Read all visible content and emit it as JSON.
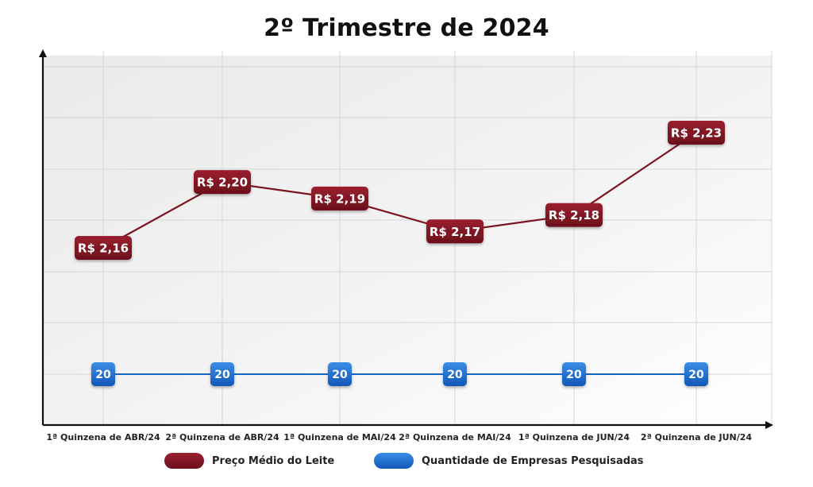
{
  "colors": {
    "price": "#7b1420",
    "price_light": "#9a2030",
    "count": "#1565c8",
    "count_light": "#3a8ee8",
    "grid": "#d6d6d6",
    "axis": "#111111"
  },
  "chart_data": {
    "type": "line",
    "title": "2º Trimestre de 2024",
    "categories": [
      "1ª Quinzena de ABR/24",
      "2ª Quinzena de ABR/24",
      "1ª Quinzena de MAI/24",
      "2ª Quinzena de MAI/24",
      "1ª Quinzena de JUN/24",
      "2ª Quinzena de JUN/24"
    ],
    "series": [
      {
        "name": "Preço Médio do Leite",
        "values": [
          2.16,
          2.2,
          2.19,
          2.17,
          2.18,
          2.23
        ],
        "labels": [
          "R$ 2,16",
          "R$ 2,20",
          "R$ 2,19",
          "R$ 2,17",
          "R$ 2,18",
          "R$ 2,23"
        ]
      },
      {
        "name": "Quantidade de Empresas Pesquisadas",
        "values": [
          20,
          20,
          20,
          20,
          20,
          20
        ],
        "labels": [
          "20",
          "20",
          "20",
          "20",
          "20",
          "20"
        ]
      }
    ],
    "grid": true,
    "legend_position": "bottom"
  }
}
